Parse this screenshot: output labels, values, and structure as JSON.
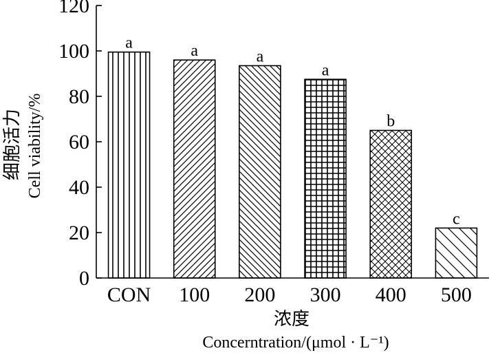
{
  "chart_data": {
    "type": "bar",
    "categories": [
      "CON",
      "100",
      "200",
      "300",
      "400",
      "500"
    ],
    "values": [
      99.5,
      96,
      93.5,
      87.5,
      65,
      22
    ],
    "significance": [
      "a",
      "a",
      "a",
      "a",
      "b",
      "c"
    ],
    "patterns": [
      "vertical",
      "diag-up",
      "diag-down",
      "grid",
      "crosshatch",
      "diag-down-sparse"
    ],
    "title": "",
    "xlabel_cn": "浓度",
    "xlabel": "Concerntration/(μmol · L⁻¹)",
    "ylabel_cn": "细胞活力",
    "ylabel": "Cell viability/%",
    "ylim": [
      0,
      120
    ],
    "yticks": [
      0,
      20,
      40,
      60,
      80,
      100,
      120
    ],
    "grid": false,
    "legend": "none"
  }
}
